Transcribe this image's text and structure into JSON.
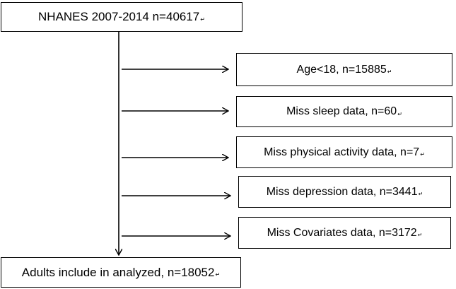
{
  "flow": {
    "top": {
      "label": "NHANES 2007-2014 n=40617",
      "mark": "↵"
    },
    "exclusions": [
      {
        "label": "Age<18, n=15885",
        "mark": "↵"
      },
      {
        "label": "Miss sleep data, n=60",
        "mark": "↵"
      },
      {
        "label": "Miss physical activity data, n=7",
        "mark": "↵"
      },
      {
        "label": "Miss depression data, n=3441",
        "mark": "↵"
      },
      {
        "label": "Miss Covariates data, n=3172",
        "mark": "↵"
      }
    ],
    "bottom": {
      "label": "Adults include in analyzed, n=18052",
      "mark": "↵"
    }
  }
}
